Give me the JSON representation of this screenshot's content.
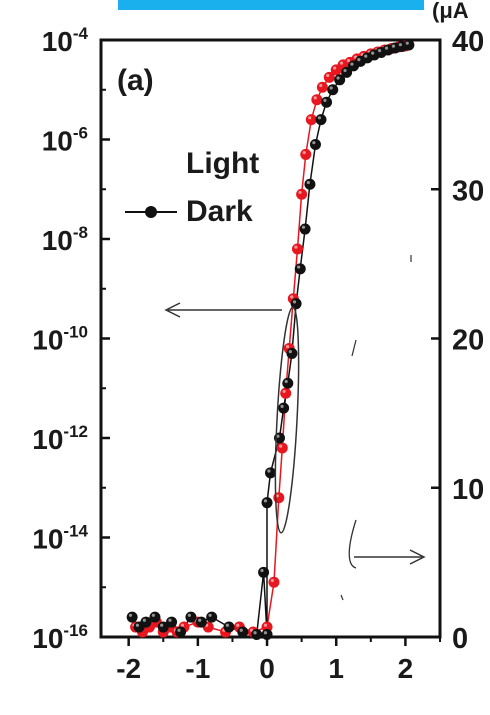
{
  "chart_data": {
    "type": "scatter",
    "panel_label": "(a)",
    "right_axis_unit_fragment": "(μA",
    "left_axis": {
      "scale": "log",
      "ylim": [
        1e-16,
        0.0001
      ],
      "ticks": [
        {
          "base": "10",
          "exp": "-4"
        },
        {
          "base": "10",
          "exp": "-6"
        },
        {
          "base": "10",
          "exp": "-8"
        },
        {
          "base": "10",
          "exp": "-10"
        },
        {
          "base": "10",
          "exp": "-12"
        },
        {
          "base": "10",
          "exp": "-14"
        },
        {
          "base": "10",
          "exp": "-16"
        }
      ]
    },
    "right_axis": {
      "scale": "linear",
      "ylim": [
        0,
        40
      ],
      "ticks": [
        "40",
        "30",
        "20",
        "10",
        "0"
      ]
    },
    "x_axis": {
      "xlim": [
        -2.4,
        2.5
      ],
      "ticks": [
        "-2",
        "-1",
        "0",
        "1",
        "2"
      ]
    },
    "series": [
      {
        "name": "Light",
        "color": "#e8161e",
        "points": [
          [
            -1.9,
            -15.8
          ],
          [
            -1.8,
            -15.9
          ],
          [
            -1.7,
            -15.8
          ],
          [
            -1.6,
            -15.7
          ],
          [
            -1.5,
            -15.9
          ],
          [
            -1.4,
            -15.8
          ],
          [
            -1.3,
            -15.9
          ],
          [
            -1.2,
            -15.8
          ],
          [
            -1.0,
            -15.7
          ],
          [
            -0.85,
            -15.8
          ],
          [
            -0.6,
            -15.9
          ],
          [
            -0.4,
            -15.8
          ],
          [
            -0.2,
            -15.9
          ],
          [
            0.0,
            -15.8
          ],
          [
            0.1,
            -14.9
          ],
          [
            0.17,
            -13.2
          ],
          [
            0.22,
            -12.2
          ],
          [
            0.27,
            -11.1
          ],
          [
            0.32,
            -10.2
          ],
          [
            0.38,
            -9.2
          ],
          [
            0.44,
            -8.2
          ],
          [
            0.5,
            -7.1
          ],
          [
            0.56,
            -6.3
          ],
          [
            0.64,
            -5.6
          ],
          [
            0.72,
            -5.2
          ],
          [
            0.8,
            -4.95
          ],
          [
            0.9,
            -4.75
          ],
          [
            1.0,
            -4.6
          ],
          [
            1.1,
            -4.5
          ],
          [
            1.2,
            -4.45
          ],
          [
            1.3,
            -4.38
          ],
          [
            1.4,
            -4.33
          ],
          [
            1.5,
            -4.28
          ],
          [
            1.6,
            -4.24
          ],
          [
            1.7,
            -4.2
          ],
          [
            1.8,
            -4.17
          ],
          [
            1.9,
            -4.14
          ],
          [
            2.0,
            -4.12
          ]
        ]
      },
      {
        "name": "Dark",
        "color": "#111111",
        "points": [
          [
            -1.95,
            -15.6
          ],
          [
            -1.85,
            -15.8
          ],
          [
            -1.75,
            -15.7
          ],
          [
            -1.62,
            -15.6
          ],
          [
            -1.5,
            -15.8
          ],
          [
            -1.38,
            -15.7
          ],
          [
            -1.25,
            -15.9
          ],
          [
            -1.1,
            -15.6
          ],
          [
            -0.95,
            -15.7
          ],
          [
            -0.8,
            -15.6
          ],
          [
            -0.55,
            -15.8
          ],
          [
            -0.35,
            -15.9
          ],
          [
            -0.15,
            -15.95
          ],
          [
            0.0,
            -15.95
          ],
          [
            -0.05,
            -14.7
          ],
          [
            0.0,
            -13.3
          ],
          [
            0.05,
            -12.7
          ],
          [
            0.18,
            -12.0
          ],
          [
            0.24,
            -11.4
          ],
          [
            0.3,
            -10.9
          ],
          [
            0.36,
            -10.3
          ],
          [
            0.42,
            -9.3
          ],
          [
            0.48,
            -8.6
          ],
          [
            0.55,
            -7.8
          ],
          [
            0.62,
            -6.9
          ],
          [
            0.7,
            -6.1
          ],
          [
            0.78,
            -5.6
          ],
          [
            0.86,
            -5.25
          ],
          [
            0.95,
            -5.0
          ],
          [
            1.05,
            -4.8
          ],
          [
            1.15,
            -4.65
          ],
          [
            1.25,
            -4.52
          ],
          [
            1.35,
            -4.43
          ],
          [
            1.45,
            -4.36
          ],
          [
            1.55,
            -4.3
          ],
          [
            1.65,
            -4.25
          ],
          [
            1.75,
            -4.2
          ],
          [
            1.85,
            -4.16
          ],
          [
            1.95,
            -4.13
          ],
          [
            2.05,
            -4.1
          ]
        ]
      }
    ],
    "legend_placement": "upper-middle",
    "annotations": [
      "left-arrow to log axis",
      "right-arrow to linear axis"
    ]
  }
}
